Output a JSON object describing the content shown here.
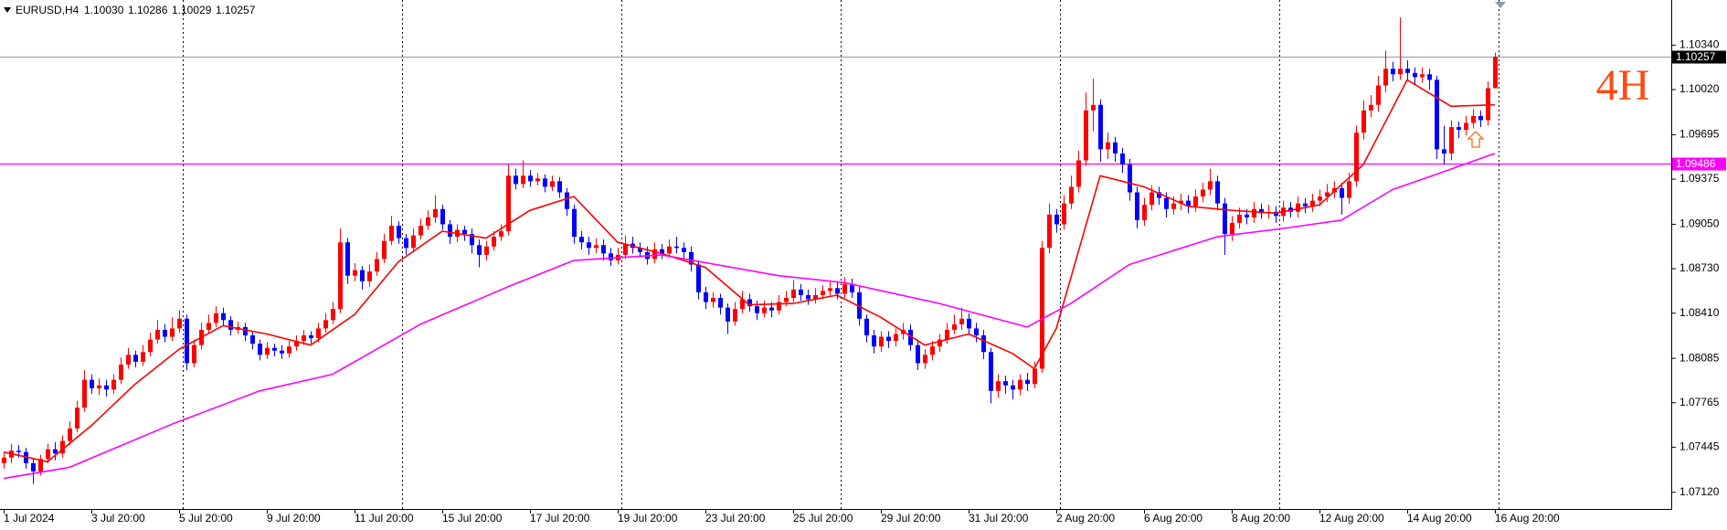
{
  "chart_data": {
    "type": "candlestick",
    "header": {
      "symbol": "EURUSD,H4",
      "ohlc": [
        "1.10030",
        "1.10286",
        "1.10029",
        "1.10257"
      ]
    },
    "annotation": "4H",
    "up_color": "#ff0000",
    "down_color": "#0000ff",
    "ylim": [
      1.07,
      1.10665
    ],
    "yticks": [
      {
        "value": 1.1034,
        "label": "1.10340"
      },
      {
        "value": 1.1002,
        "label": "1.10020"
      },
      1.09695,
      1.09375,
      {
        "value": 1.0905,
        "label": "1.09050"
      },
      {
        "value": 1.0873,
        "label": "1.08730"
      },
      {
        "value": 1.0841,
        "label": "1.08410"
      },
      1.08085,
      1.07765,
      1.07445,
      {
        "value": 1.0712,
        "label": "1.07120"
      }
    ],
    "price_lines": [
      {
        "value": 1.10257,
        "color": "#9aa6b2",
        "label_color": "#000000"
      },
      {
        "value": 1.09486,
        "color": "#ff00ff",
        "label_color": "#ff00ff"
      }
    ],
    "categories": [
      "1 Jul 2024",
      null,
      null,
      null,
      null,
      null,
      null,
      null,
      null,
      null,
      null,
      null,
      "3 Jul 20:00",
      null,
      null,
      null,
      null,
      null,
      null,
      null,
      null,
      null,
      null,
      null,
      "5 Jul 20:00",
      null,
      null,
      null,
      null,
      null,
      null,
      null,
      null,
      null,
      null,
      null,
      "9 Jul 20:00",
      null,
      null,
      null,
      null,
      null,
      null,
      null,
      null,
      null,
      null,
      null,
      "11 Jul 20:00",
      null,
      null,
      null,
      null,
      null,
      null,
      null,
      null,
      null,
      null,
      null,
      "15 Jul 20:00",
      null,
      null,
      null,
      null,
      null,
      null,
      null,
      null,
      null,
      null,
      null,
      "17 Jul 20:00",
      null,
      null,
      null,
      null,
      null,
      null,
      null,
      null,
      null,
      null,
      null,
      "19 Jul 20:00",
      null,
      null,
      null,
      null,
      null,
      null,
      null,
      null,
      null,
      null,
      null,
      "23 Jul 20:00",
      null,
      null,
      null,
      null,
      null,
      null,
      null,
      null,
      null,
      null,
      null,
      "25 Jul 20:00",
      null,
      null,
      null,
      null,
      null,
      null,
      null,
      null,
      null,
      null,
      null,
      "29 Jul 20:00",
      null,
      null,
      null,
      null,
      null,
      null,
      null,
      null,
      null,
      null,
      null,
      "31 Jul 20:00",
      null,
      null,
      null,
      null,
      null,
      null,
      null,
      null,
      null,
      null,
      null,
      "2 Aug 20:00",
      null,
      null,
      null,
      null,
      null,
      null,
      null,
      null,
      null,
      null,
      null,
      "6 Aug 20:00",
      null,
      null,
      null,
      null,
      null,
      null,
      null,
      null,
      null,
      null,
      null,
      "8 Aug 20:00",
      null,
      null,
      null,
      null,
      null,
      null,
      null,
      null,
      null,
      null,
      null,
      "12 Aug 20:00",
      null,
      null,
      null,
      null,
      null,
      null,
      null,
      null,
      null,
      null,
      null,
      "14 Aug 20:00",
      null,
      null,
      null,
      null,
      null,
      null,
      null,
      null,
      null,
      null,
      null,
      "16 Aug 20:00"
    ],
    "open": [
      1.0733,
      1.0737,
      1.0742,
      1.0741,
      1.0733,
      1.0727,
      1.0736,
      1.0743,
      1.074,
      1.0749,
      1.0758,
      1.0773,
      1.0793,
      1.0787,
      1.0789,
      1.0786,
      1.0793,
      1.0804,
      1.0811,
      1.0806,
      1.0813,
      1.0822,
      1.0829,
      1.0824,
      1.083,
      1.0837,
      1.0805,
      1.0818,
      1.0829,
      1.0834,
      1.0841,
      1.0836,
      1.0829,
      1.0831,
      1.0825,
      1.0819,
      1.0811,
      1.0816,
      1.0814,
      1.0812,
      1.0817,
      1.0821,
      1.0825,
      1.0823,
      1.083,
      1.0836,
      1.0844,
      1.0892,
      1.0868,
      1.0872,
      1.0864,
      1.0871,
      1.088,
      1.0893,
      1.0904,
      1.0895,
      1.0888,
      1.0897,
      1.0904,
      1.091,
      1.0916,
      1.0905,
      1.0896,
      1.0901,
      1.0898,
      1.089,
      1.0883,
      1.0889,
      1.0896,
      1.09,
      1.094,
      1.0934,
      1.094,
      1.0936,
      1.0938,
      1.0932,
      1.0936,
      1.0928,
      1.0916,
      1.0896,
      1.0892,
      1.0888,
      1.089,
      1.0884,
      1.0879,
      1.0883,
      1.0891,
      1.0888,
      1.0885,
      1.088,
      1.0887,
      1.0884,
      1.0889,
      1.0888,
      1.0885,
      1.0876,
      1.0856,
      1.0849,
      1.0852,
      1.0845,
      1.0835,
      1.0844,
      1.0851,
      1.0846,
      1.0841,
      1.0845,
      1.0843,
      1.0849,
      1.0852,
      1.0858,
      1.0854,
      1.0851,
      1.0854,
      1.0857,
      1.0859,
      1.0855,
      1.0862,
      1.0856,
      1.0837,
      1.0825,
      1.0817,
      1.0824,
      1.0821,
      1.0826,
      1.0829,
      1.0818,
      1.0805,
      1.0811,
      1.0817,
      1.0822,
      1.0829,
      1.0833,
      1.0837,
      1.083,
      1.0825,
      1.0813,
      1.0785,
      1.0792,
      1.0789,
      1.0786,
      1.0793,
      1.079,
      1.0801,
      1.0888,
      1.0912,
      1.0905,
      1.092,
      1.0932,
      1.0951,
      1.0987,
      1.0991,
      1.0959,
      1.0964,
      1.0956,
      1.0948,
      1.0928,
      1.0908,
      1.0919,
      1.0928,
      1.0924,
      1.0916,
      1.092,
      1.0922,
      1.0918,
      1.0925,
      1.093,
      1.0936,
      1.092,
      1.0898,
      1.0906,
      1.0912,
      1.091,
      1.0916,
      1.0913,
      1.0914,
      1.0911,
      1.0917,
      1.0914,
      1.092,
      1.0918,
      1.0922,
      1.0925,
      1.0928,
      1.0931,
      1.0924,
      1.0936,
      1.0971,
      1.0987,
      1.0991,
      1.1005,
      1.1017,
      1.1013,
      1.1017,
      1.1014,
      1.1011,
      1.1013,
      1.1009,
      1.0959,
      1.0956,
      1.0975,
      1.0973,
      1.0978,
      1.0983,
      1.098,
      1.1003
    ],
    "high": [
      1.0741,
      1.0747,
      1.0746,
      1.0744,
      1.0736,
      1.0739,
      1.0747,
      1.0748,
      1.0753,
      1.0763,
      1.0778,
      1.08,
      1.0797,
      1.0794,
      1.0793,
      1.0797,
      1.0809,
      1.0816,
      1.0814,
      1.0818,
      1.0827,
      1.0836,
      1.0833,
      1.0838,
      1.0843,
      1.084,
      1.0822,
      1.0834,
      1.084,
      1.0846,
      1.0845,
      1.0839,
      1.0835,
      1.0834,
      1.0828,
      1.0822,
      1.082,
      1.0819,
      1.0818,
      1.0821,
      1.0825,
      1.0829,
      1.0828,
      1.0834,
      1.0841,
      1.0849,
      1.0902,
      1.0895,
      1.0877,
      1.0875,
      1.0876,
      1.0885,
      1.0898,
      1.0911,
      1.0907,
      1.0898,
      1.0902,
      1.0909,
      1.0915,
      1.0926,
      1.0919,
      1.0908,
      1.0905,
      1.0904,
      1.0902,
      1.0894,
      1.0893,
      1.09,
      1.0905,
      1.0948,
      1.0945,
      1.0951,
      1.0944,
      1.0942,
      1.0941,
      1.094,
      1.0939,
      1.0931,
      1.0919,
      1.09,
      1.0896,
      1.0895,
      1.0894,
      1.0888,
      1.0888,
      1.0897,
      1.0896,
      1.0892,
      1.0889,
      1.0892,
      1.0891,
      1.0894,
      1.0896,
      1.0892,
      1.0889,
      1.0879,
      1.086,
      1.0856,
      1.0855,
      1.0848,
      1.0849,
      1.0857,
      1.0855,
      1.085,
      1.085,
      1.0849,
      1.0854,
      1.0857,
      1.0865,
      1.0862,
      1.0858,
      1.0859,
      1.0861,
      1.0864,
      1.0863,
      1.0867,
      1.0866,
      1.086,
      1.084,
      1.0829,
      1.0828,
      1.0828,
      1.083,
      1.0834,
      1.0833,
      1.0822,
      1.0815,
      1.0821,
      1.0826,
      1.0834,
      1.084,
      1.0845,
      1.0841,
      1.0834,
      1.0829,
      1.0816,
      1.0797,
      1.0796,
      1.0793,
      1.0797,
      1.0798,
      1.0806,
      1.0893,
      1.092,
      1.0916,
      1.0926,
      1.094,
      1.0958,
      1.1,
      1.101,
      1.0995,
      1.0971,
      1.0968,
      1.096,
      1.0952,
      1.0932,
      1.0924,
      1.0933,
      1.0932,
      1.0928,
      1.0925,
      1.0927,
      1.0926,
      1.093,
      1.0935,
      1.0945,
      1.094,
      1.0924,
      1.0911,
      1.0917,
      1.0916,
      1.0921,
      1.092,
      1.0919,
      1.0918,
      1.0922,
      1.0921,
      1.0925,
      1.0924,
      1.0927,
      1.093,
      1.0934,
      1.0936,
      1.0935,
      1.0942,
      1.0976,
      1.0994,
      1.0998,
      1.1012,
      1.103,
      1.1022,
      1.1054,
      1.1023,
      1.1018,
      1.1018,
      1.1017,
      1.1012,
      1.0976,
      1.098,
      1.0979,
      1.0983,
      1.0988,
      1.0987,
      1.1008,
      1.10286
    ],
    "low": [
      1.0729,
      1.0733,
      1.0737,
      1.0729,
      1.0718,
      1.0724,
      1.0733,
      1.0735,
      1.0737,
      1.0746,
      1.0755,
      1.077,
      1.0783,
      1.0782,
      1.0781,
      1.0783,
      1.079,
      1.0801,
      1.0802,
      1.0803,
      1.081,
      1.0819,
      1.082,
      1.0821,
      1.0827,
      1.08,
      1.0802,
      1.0815,
      1.0826,
      1.0831,
      1.0832,
      1.0825,
      1.0826,
      1.0821,
      1.0815,
      1.0807,
      1.0808,
      1.081,
      1.0808,
      1.0809,
      1.0814,
      1.0818,
      1.0819,
      1.082,
      1.0827,
      1.0833,
      1.0841,
      1.0862,
      1.0864,
      1.0858,
      1.086,
      1.0868,
      1.0877,
      1.089,
      1.0891,
      1.0883,
      1.0885,
      1.0894,
      1.0901,
      1.0906,
      1.0901,
      1.0891,
      1.0892,
      1.0893,
      1.0884,
      1.0874,
      1.0879,
      1.0886,
      1.0893,
      1.0897,
      1.093,
      1.0931,
      1.0932,
      1.0933,
      1.0928,
      1.0929,
      1.0924,
      1.0911,
      1.0891,
      1.0887,
      1.0883,
      1.0884,
      1.0879,
      1.0875,
      1.0876,
      1.088,
      1.0884,
      1.0881,
      1.0876,
      1.0877,
      1.088,
      1.0881,
      1.0884,
      1.088,
      1.0871,
      1.0851,
      1.0844,
      1.0845,
      1.084,
      1.0826,
      1.0832,
      1.0841,
      1.0842,
      1.0836,
      1.0838,
      1.0838,
      1.084,
      1.0846,
      1.0849,
      1.085,
      1.0847,
      1.0848,
      1.0851,
      1.0853,
      1.0851,
      1.0852,
      1.0852,
      1.0832,
      1.082,
      1.0812,
      1.0813,
      1.0816,
      1.0817,
      1.0822,
      1.0814,
      1.08,
      1.0801,
      1.0807,
      1.0813,
      1.0819,
      1.0826,
      1.0829,
      1.0826,
      1.082,
      1.0808,
      1.0776,
      1.078,
      1.0783,
      1.0779,
      1.0782,
      1.0785,
      1.0787,
      1.0798,
      1.0884,
      1.0899,
      1.0901,
      1.0916,
      1.0928,
      1.0947,
      1.0972,
      1.095,
      1.0952,
      1.095,
      1.0942,
      1.0922,
      1.0902,
      1.0904,
      1.0915,
      1.0919,
      1.091,
      1.0912,
      1.0915,
      1.0913,
      1.0914,
      1.0921,
      1.0926,
      1.0915,
      1.0883,
      1.0893,
      1.0902,
      1.0905,
      1.0906,
      1.0909,
      1.0909,
      1.0906,
      1.0907,
      1.091,
      1.091,
      1.0913,
      1.0914,
      1.0918,
      1.0921,
      1.0924,
      1.0912,
      1.092,
      1.0932,
      1.0966,
      1.0982,
      1.0986,
      1.1,
      1.1008,
      1.1009,
      1.1009,
      1.1006,
      1.1007,
      1.1002,
      1.0952,
      1.0948,
      1.0951,
      1.0967,
      1.0969,
      1.0974,
      1.0975,
      1.0976,
      1.10029
    ],
    "close": [
      1.0737,
      1.0742,
      1.0741,
      1.0733,
      1.0727,
      1.0736,
      1.0743,
      1.074,
      1.0749,
      1.0758,
      1.0773,
      1.0793,
      1.0787,
      1.0789,
      1.0786,
      1.0793,
      1.0804,
      1.0811,
      1.0806,
      1.0813,
      1.0822,
      1.0829,
      1.0824,
      1.083,
      1.0837,
      1.0805,
      1.0818,
      1.0829,
      1.0834,
      1.0841,
      1.0836,
      1.0829,
      1.0831,
      1.0825,
      1.0819,
      1.0811,
      1.0816,
      1.0814,
      1.0812,
      1.0817,
      1.0821,
      1.0825,
      1.0823,
      1.083,
      1.0836,
      1.0844,
      1.0892,
      1.0868,
      1.0872,
      1.0864,
      1.0871,
      1.088,
      1.0893,
      1.0904,
      1.0895,
      1.0888,
      1.0897,
      1.0904,
      1.091,
      1.0916,
      1.0905,
      1.0896,
      1.0901,
      1.0898,
      1.089,
      1.0883,
      1.0889,
      1.0896,
      1.09,
      1.094,
      1.0934,
      1.094,
      1.0936,
      1.0938,
      1.0932,
      1.0936,
      1.0928,
      1.0916,
      1.0896,
      1.0892,
      1.0888,
      1.089,
      1.0884,
      1.0879,
      1.0883,
      1.0891,
      1.0888,
      1.0885,
      1.088,
      1.0887,
      1.0884,
      1.0889,
      1.0888,
      1.0885,
      1.0876,
      1.0856,
      1.0849,
      1.0852,
      1.0845,
      1.0835,
      1.0844,
      1.0851,
      1.0846,
      1.0841,
      1.0845,
      1.0843,
      1.0849,
      1.0852,
      1.0858,
      1.0854,
      1.0851,
      1.0854,
      1.0857,
      1.0859,
      1.0855,
      1.0862,
      1.0856,
      1.0837,
      1.0825,
      1.0817,
      1.0824,
      1.0821,
      1.0826,
      1.0829,
      1.0818,
      1.0805,
      1.0811,
      1.0817,
      1.0822,
      1.0829,
      1.0833,
      1.0837,
      1.083,
      1.0825,
      1.0813,
      1.0785,
      1.0792,
      1.0789,
      1.0786,
      1.0793,
      1.079,
      1.0801,
      1.0888,
      1.0912,
      1.0905,
      1.092,
      1.0932,
      1.0951,
      1.0987,
      1.0991,
      1.0959,
      1.0964,
      1.0956,
      1.0948,
      1.0928,
      1.0908,
      1.0919,
      1.0928,
      1.0924,
      1.0916,
      1.092,
      1.0922,
      1.0918,
      1.0925,
      1.093,
      1.0936,
      1.092,
      1.0898,
      1.0906,
      1.0912,
      1.091,
      1.0916,
      1.0913,
      1.0914,
      1.0911,
      1.0917,
      1.0914,
      1.092,
      1.0918,
      1.0922,
      1.0925,
      1.0928,
      1.0931,
      1.0924,
      1.0936,
      1.0971,
      1.0987,
      1.0991,
      1.1005,
      1.1017,
      1.1013,
      1.1017,
      1.1014,
      1.1011,
      1.1013,
      1.1009,
      1.0959,
      1.0956,
      1.0975,
      1.0973,
      1.0978,
      1.0983,
      1.098,
      1.1003,
      1.10257
    ],
    "lines": [
      {
        "color": "#ff0000",
        "x": [
          0,
          6,
          12,
          18,
          24,
          30,
          36,
          42,
          48,
          54,
          60,
          66,
          72,
          78,
          84,
          90,
          96,
          102,
          108,
          114,
          120,
          126,
          132,
          138,
          141,
          144,
          150,
          156,
          162,
          168,
          174,
          180,
          186,
          192,
          198,
          204
        ],
        "values": [
          1.0741,
          1.0734,
          1.076,
          1.079,
          1.0815,
          1.0832,
          1.0826,
          1.0818,
          1.084,
          1.0878,
          1.09,
          1.0895,
          1.0915,
          1.0925,
          1.0892,
          1.0884,
          1.0874,
          1.0847,
          1.0848,
          1.0854,
          1.0838,
          1.0818,
          1.0826,
          1.0812,
          1.0801,
          1.083,
          1.094,
          1.0932,
          1.0918,
          1.0915,
          1.0913,
          1.0919,
          1.0948,
          1.1009,
          1.099,
          1.0991
        ]
      },
      {
        "color": "#ff00ff",
        "x": [
          0,
          9,
          23,
          35,
          45,
          57,
          69,
          78,
          90,
          106,
          115,
          128,
          140,
          146,
          154,
          166,
          175,
          183,
          190,
          196,
          204
        ],
        "values": [
          1.0722,
          1.073,
          1.0761,
          1.0785,
          1.0797,
          1.0833,
          1.086,
          1.0879,
          1.0883,
          1.0868,
          1.0863,
          1.0848,
          1.0831,
          1.0848,
          1.0876,
          1.0896,
          1.0902,
          1.0908,
          1.093,
          1.0941,
          1.0956
        ]
      }
    ]
  }
}
